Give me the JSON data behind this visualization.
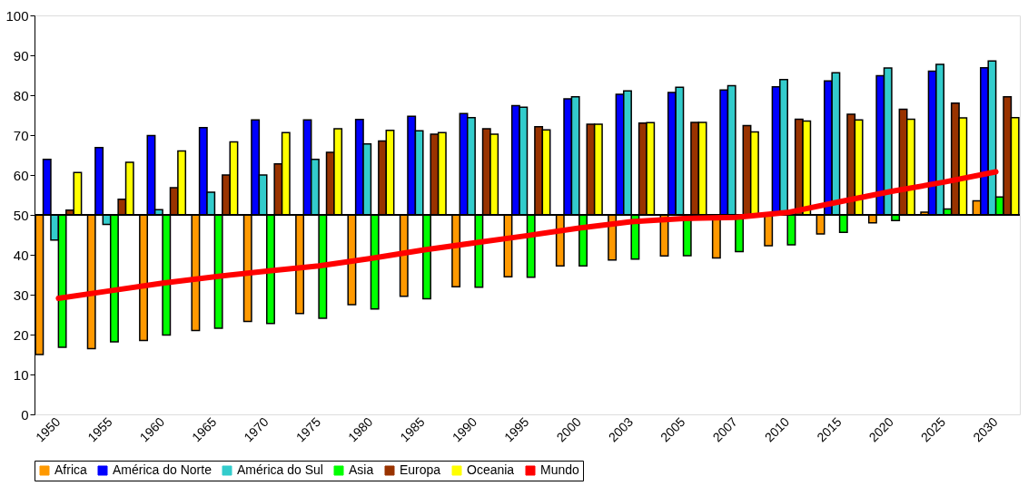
{
  "chart_data": {
    "type": "bar",
    "categories": [
      "1950",
      "1955",
      "1960",
      "1965",
      "1970",
      "1975",
      "1980",
      "1985",
      "1990",
      "1995",
      "2000",
      "2003",
      "2005",
      "2007",
      "2010",
      "2015",
      "2020",
      "2025",
      "2030"
    ],
    "series": [
      {
        "name": "Africa",
        "color": "#ff9900",
        "base": [
          50,
          50,
          50,
          50,
          50,
          50,
          50,
          50,
          50,
          50,
          50,
          50,
          50,
          50,
          50,
          50,
          50,
          50,
          50
        ],
        "values": [
          -35,
          -33.5,
          -31.5,
          -29,
          -26.7,
          -24.7,
          -22.5,
          -20.4,
          -18,
          -15.5,
          -12.8,
          -11.3,
          -10.3,
          -10.8,
          -7.7,
          -4.8,
          -2,
          0.7,
          3.5
        ]
      },
      {
        "name": "América do Norte",
        "color": "#0000ff",
        "base": [
          50,
          50,
          50,
          50,
          50,
          50,
          50,
          50,
          50,
          50,
          50,
          50,
          50,
          50,
          50,
          50,
          50,
          50,
          50
        ],
        "values": [
          13.9,
          16.9,
          19.9,
          21.9,
          23.8,
          23.8,
          23.9,
          24.7,
          25.4,
          27.4,
          29.1,
          30.2,
          30.7,
          31.3,
          32.1,
          33.6,
          34.9,
          36,
          36.9
        ]
      },
      {
        "name": "América do Sul",
        "color": "#33cccc",
        "base": [
          50,
          50,
          50,
          50,
          50,
          50,
          50,
          50,
          50,
          50,
          50,
          50,
          50,
          50,
          50,
          50,
          50,
          50,
          50
        ],
        "values": [
          -6.3,
          -2.4,
          1.3,
          5.7,
          10,
          13.9,
          17.8,
          21.1,
          24.4,
          27,
          29.6,
          31.1,
          32,
          32.4,
          33.9,
          35.6,
          36.8,
          37.7,
          38.6
        ]
      },
      {
        "name": "Asia",
        "color": "#00ff00",
        "base": [
          50,
          50,
          50,
          50,
          50,
          50,
          50,
          50,
          50,
          50,
          50,
          50,
          50,
          50,
          50,
          50,
          50,
          50,
          50
        ],
        "values": [
          -33.2,
          -31.8,
          -30.1,
          -28.4,
          -27.2,
          -25.9,
          -23.6,
          -21,
          -18.1,
          -15.6,
          -12.8,
          -11.1,
          -10.2,
          -9.2,
          -7.5,
          -4.4,
          -1.4,
          1.5,
          4.5
        ]
      },
      {
        "name": "Europa",
        "color": "#993300",
        "base": [
          50,
          50,
          50,
          50,
          50,
          50,
          50,
          50,
          50,
          50,
          50,
          50,
          50,
          50,
          50,
          50,
          50,
          50,
          50
        ],
        "values": [
          1.2,
          3.9,
          6.8,
          10,
          12.8,
          15.7,
          18.5,
          20.2,
          21.6,
          22.1,
          22.7,
          23,
          23.2,
          22.4,
          24,
          25.2,
          26.5,
          28,
          29.6
        ]
      },
      {
        "name": "Oceania",
        "color": "#ffff00",
        "base": [
          50,
          50,
          50,
          50,
          50,
          50,
          50,
          50,
          50,
          50,
          50,
          50,
          50,
          50,
          50,
          50,
          50,
          50,
          50
        ],
        "values": [
          10.6,
          13.2,
          16,
          18.3,
          20.6,
          21.6,
          21.2,
          20.6,
          20.2,
          21.3,
          22.7,
          23.1,
          23.2,
          20.8,
          23.5,
          23.8,
          24,
          24.3,
          24.4
        ]
      },
      {
        "name": "Mundo",
        "type": "line",
        "color": "#ff0000",
        "values": [
          29.1,
          31,
          32.9,
          34.5,
          35.9,
          37.2,
          39.1,
          41.2,
          43,
          44.8,
          46.7,
          48.3,
          49.1,
          49.4,
          50.6,
          53.3,
          55.9,
          58.2,
          60.8
        ]
      }
    ],
    "ylim": [
      0,
      100
    ],
    "yticks": [
      0,
      10,
      20,
      30,
      40,
      50,
      60,
      70,
      80,
      90,
      100
    ],
    "ref_lines": [
      {
        "axis": "y",
        "value": 50,
        "color": "#000000"
      }
    ],
    "grid": false,
    "legend": "bottom"
  }
}
